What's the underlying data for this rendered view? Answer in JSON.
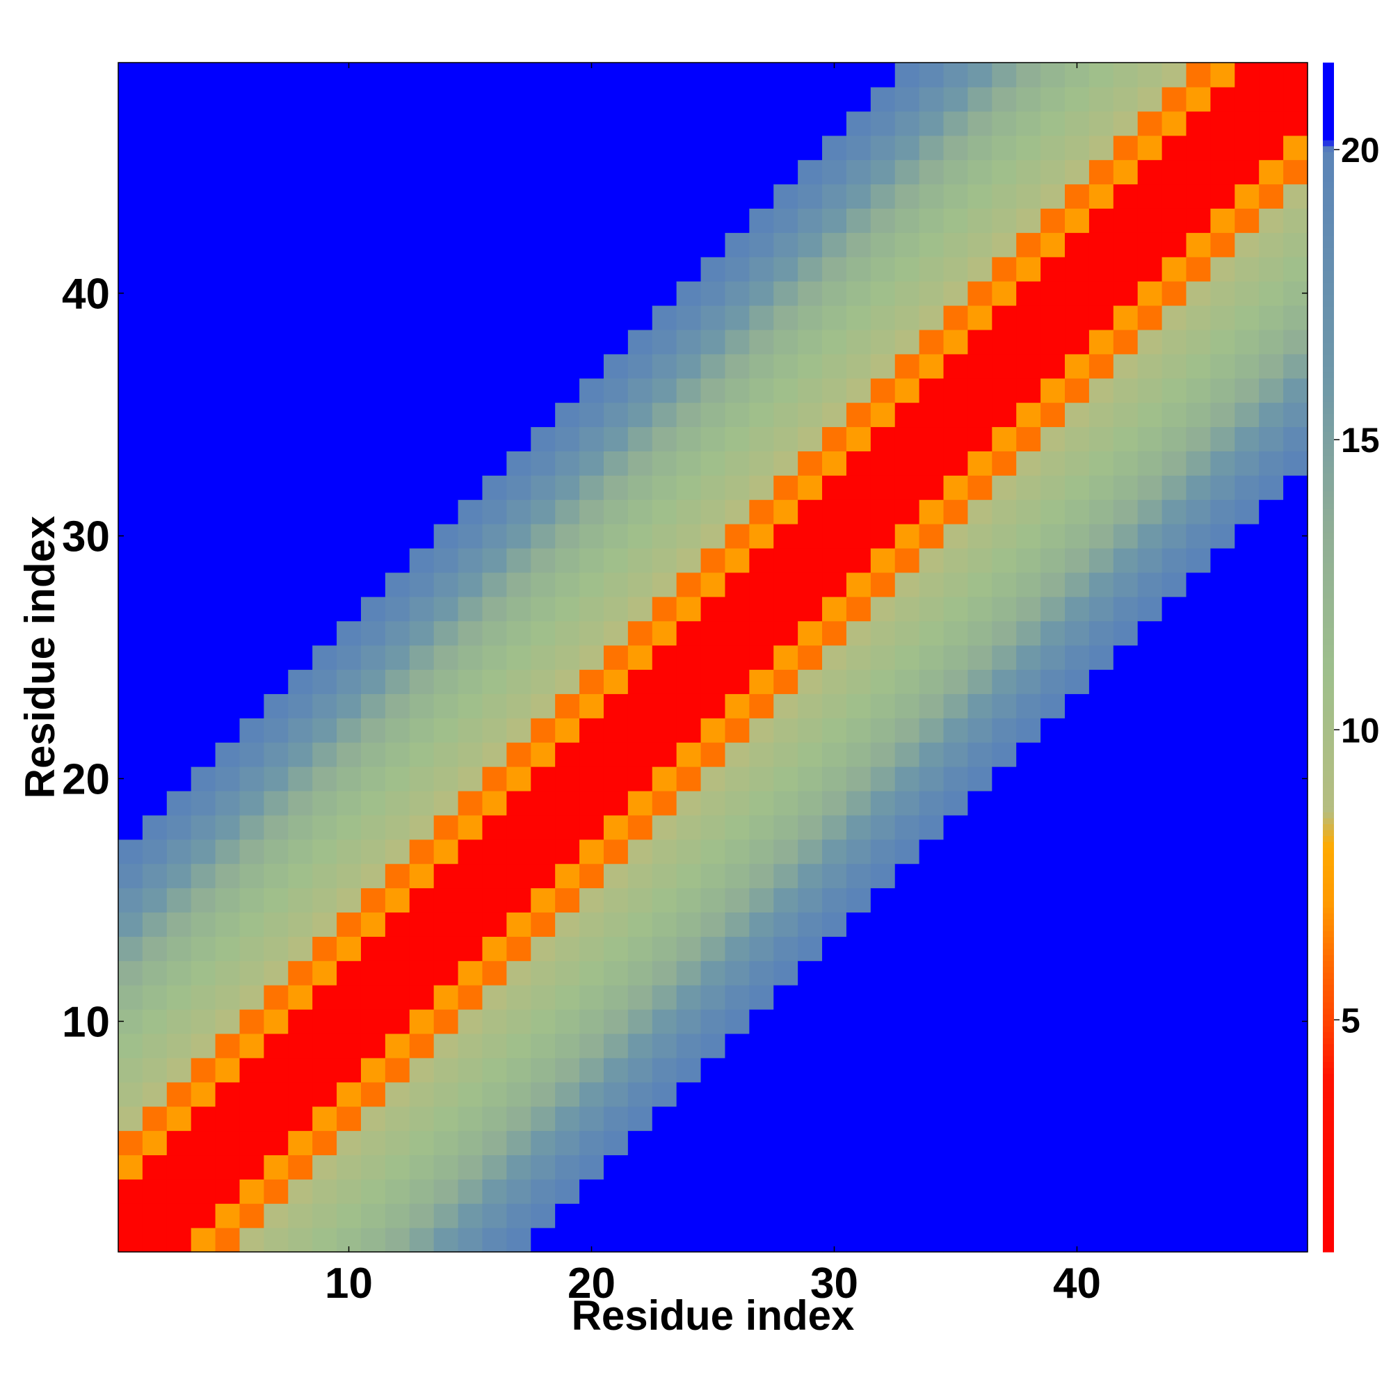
{
  "chart_data": {
    "type": "heatmap",
    "title": "",
    "xlabel": "Residue index",
    "ylabel": "Residue index",
    "xlim": [
      0.5,
      49.5
    ],
    "ylim": [
      0.5,
      49.5
    ],
    "x_ticks": [
      10,
      20,
      30,
      40
    ],
    "y_ticks": [
      10,
      20,
      30,
      40
    ],
    "grid": false,
    "colorbar": {
      "ticks": [
        5,
        10,
        15,
        20
      ],
      "range": [
        1,
        21.5
      ],
      "color_stops": [
        {
          "value": 1.0,
          "color": "#ff0000"
        },
        {
          "value": 4.0,
          "color": "#ff1100"
        },
        {
          "value": 5.0,
          "color": "#ff4400"
        },
        {
          "value": 6.0,
          "color": "#ff6a00"
        },
        {
          "value": 7.0,
          "color": "#ff9900"
        },
        {
          "value": 8.0,
          "color": "#ffaa00"
        },
        {
          "value": 8.6,
          "color": "#b5bd80"
        },
        {
          "value": 11.0,
          "color": "#9ebf8c"
        },
        {
          "value": 13.5,
          "color": "#8fad96"
        },
        {
          "value": 16.0,
          "color": "#6f98a8"
        },
        {
          "value": 20.0,
          "color": "#5b84b8"
        },
        {
          "value": 20.2,
          "color": "#0000ff"
        },
        {
          "value": 21.5,
          "color": "#0000ff"
        }
      ]
    },
    "description_of_values": "Symmetric residue–residue distance-like map: value grows with |i-j| along the diagonal band; cells beyond the band are saturated (blue, ~21).",
    "band_model": {
      "n_residues": 49,
      "by_offset": [
        1.5,
        1.5,
        1.5,
        7.2,
        6.2,
        8.6,
        9.5,
        10.2,
        10.8,
        11.5,
        12.3,
        13.2,
        14.5,
        16.0,
        17.5,
        19.0,
        20.0,
        21.0
      ],
      "saturation_value": 21.5
    }
  },
  "colors": {
    "background": "#ffffff",
    "saturated": "#0000ff",
    "diagonal": "#ff0000"
  }
}
